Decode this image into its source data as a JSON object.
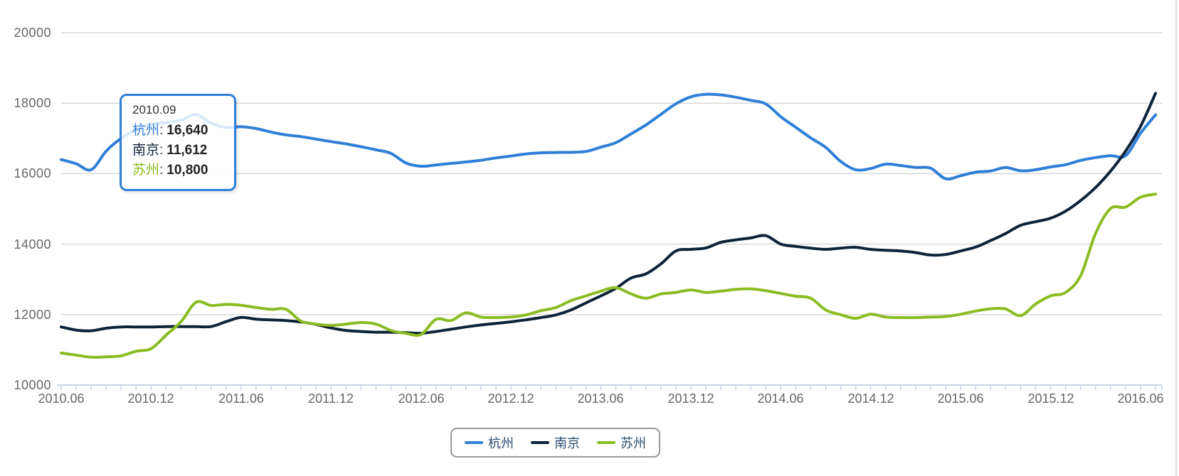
{
  "chart_data": {
    "type": "line",
    "title": "",
    "xlabel": "",
    "ylabel": "",
    "ylim": [
      10000,
      20000
    ],
    "y_tick_interval": 2000,
    "grid": "horizontal",
    "legend_position": "bottom",
    "x_label_every": 6,
    "categories": [
      "2010.06",
      "2010.07",
      "2010.08",
      "2010.09",
      "2010.10",
      "2010.11",
      "2010.12",
      "2011.01",
      "2011.02",
      "2011.03",
      "2011.04",
      "2011.05",
      "2011.06",
      "2011.07",
      "2011.08",
      "2011.09",
      "2011.10",
      "2011.11",
      "2011.12",
      "2012.01",
      "2012.02",
      "2012.03",
      "2012.04",
      "2012.05",
      "2012.06",
      "2012.07",
      "2012.08",
      "2012.09",
      "2012.10",
      "2012.11",
      "2012.12",
      "2013.01",
      "2013.02",
      "2013.03",
      "2013.04",
      "2013.05",
      "2013.06",
      "2013.07",
      "2013.08",
      "2013.09",
      "2013.10",
      "2013.11",
      "2013.12",
      "2014.01",
      "2014.02",
      "2014.03",
      "2014.04",
      "2014.05",
      "2014.06",
      "2014.07",
      "2014.08",
      "2014.09",
      "2014.10",
      "2014.11",
      "2014.12",
      "2015.01",
      "2015.02",
      "2015.03",
      "2015.04",
      "2015.05",
      "2015.06",
      "2015.07",
      "2015.08",
      "2015.09",
      "2015.10",
      "2015.11",
      "2015.12",
      "2016.01",
      "2016.02",
      "2016.03",
      "2016.04",
      "2016.05",
      "2016.06",
      "2016.07"
    ],
    "series": [
      {
        "name": "杭州",
        "color": "#2f7ed8",
        "values": [
          16400,
          16280,
          16110,
          16640,
          17000,
          17250,
          17400,
          17450,
          17520,
          17680,
          17430,
          17310,
          17330,
          17280,
          17180,
          17100,
          17050,
          16980,
          16910,
          16845,
          16765,
          16675,
          16575,
          16300,
          16210,
          16245,
          16290,
          16330,
          16380,
          16445,
          16500,
          16560,
          16590,
          16600,
          16605,
          16630,
          16750,
          16880,
          17125,
          17380,
          17680,
          17980,
          18180,
          18250,
          18235,
          18170,
          18080,
          17980,
          17615,
          17315,
          17015,
          16745,
          16345,
          16110,
          16145,
          16270,
          16230,
          16175,
          16155,
          15855,
          15940,
          16040,
          16075,
          16175,
          16080,
          16110,
          16190,
          16255,
          16375,
          16455,
          16510,
          16510,
          17145,
          17670
        ]
      },
      {
        "name": "南京",
        "color": "#0d233a",
        "values": [
          11650,
          11560,
          11540,
          11612,
          11650,
          11650,
          11650,
          11660,
          11660,
          11660,
          11660,
          11800,
          11920,
          11870,
          11850,
          11830,
          11790,
          11720,
          11620,
          11550,
          11520,
          11500,
          11500,
          11485,
          11470,
          11520,
          11585,
          11650,
          11705,
          11750,
          11795,
          11850,
          11915,
          11990,
          12130,
          12330,
          12530,
          12745,
          13035,
          13155,
          13435,
          13805,
          13850,
          13890,
          14050,
          14120,
          14175,
          14240,
          14000,
          13935,
          13885,
          13850,
          13885,
          13910,
          13850,
          13825,
          13805,
          13760,
          13690,
          13705,
          13805,
          13915,
          14100,
          14300,
          14535,
          14635,
          14735,
          14935,
          15235,
          15605,
          16070,
          16640,
          17340,
          18280
        ]
      },
      {
        "name": "苏州",
        "color": "#8bbc21",
        "values": [
          10910,
          10850,
          10790,
          10800,
          10830,
          10960,
          11035,
          11420,
          11800,
          12350,
          12260,
          12290,
          12265,
          12200,
          12150,
          12150,
          11815,
          11730,
          11695,
          11730,
          11775,
          11730,
          11550,
          11465,
          11435,
          11865,
          11830,
          12050,
          11930,
          11915,
          11930,
          11990,
          12110,
          12200,
          12395,
          12530,
          12665,
          12765,
          12590,
          12465,
          12585,
          12630,
          12700,
          12630,
          12665,
          12715,
          12730,
          12680,
          12600,
          12520,
          12465,
          12130,
          11995,
          11895,
          12010,
          11930,
          11915,
          11915,
          11930,
          11945,
          12010,
          12100,
          12165,
          12160,
          11970,
          12300,
          12530,
          12630,
          13100,
          14300,
          15010,
          15050,
          15330,
          15420
        ]
      }
    ],
    "y_tick_labels": [
      "20000",
      "18000",
      "16000",
      "14000",
      "12000",
      "10000"
    ]
  },
  "tooltip": {
    "title": "2010.09",
    "separator": ":",
    "border_color": "#2f7ed8",
    "rows": [
      {
        "label": "杭州",
        "value": "16,640",
        "color": "#2f7ed8"
      },
      {
        "label": "南京",
        "value": "11,612",
        "color": "#0d233a"
      },
      {
        "label": "苏州",
        "value": "10,800",
        "color": "#8bbc21"
      }
    ]
  },
  "legend": {
    "items": [
      {
        "label": "杭州",
        "color": "#2f7ed8"
      },
      {
        "label": "南京",
        "color": "#0d233a"
      },
      {
        "label": "苏州",
        "color": "#8bbc21"
      }
    ]
  }
}
